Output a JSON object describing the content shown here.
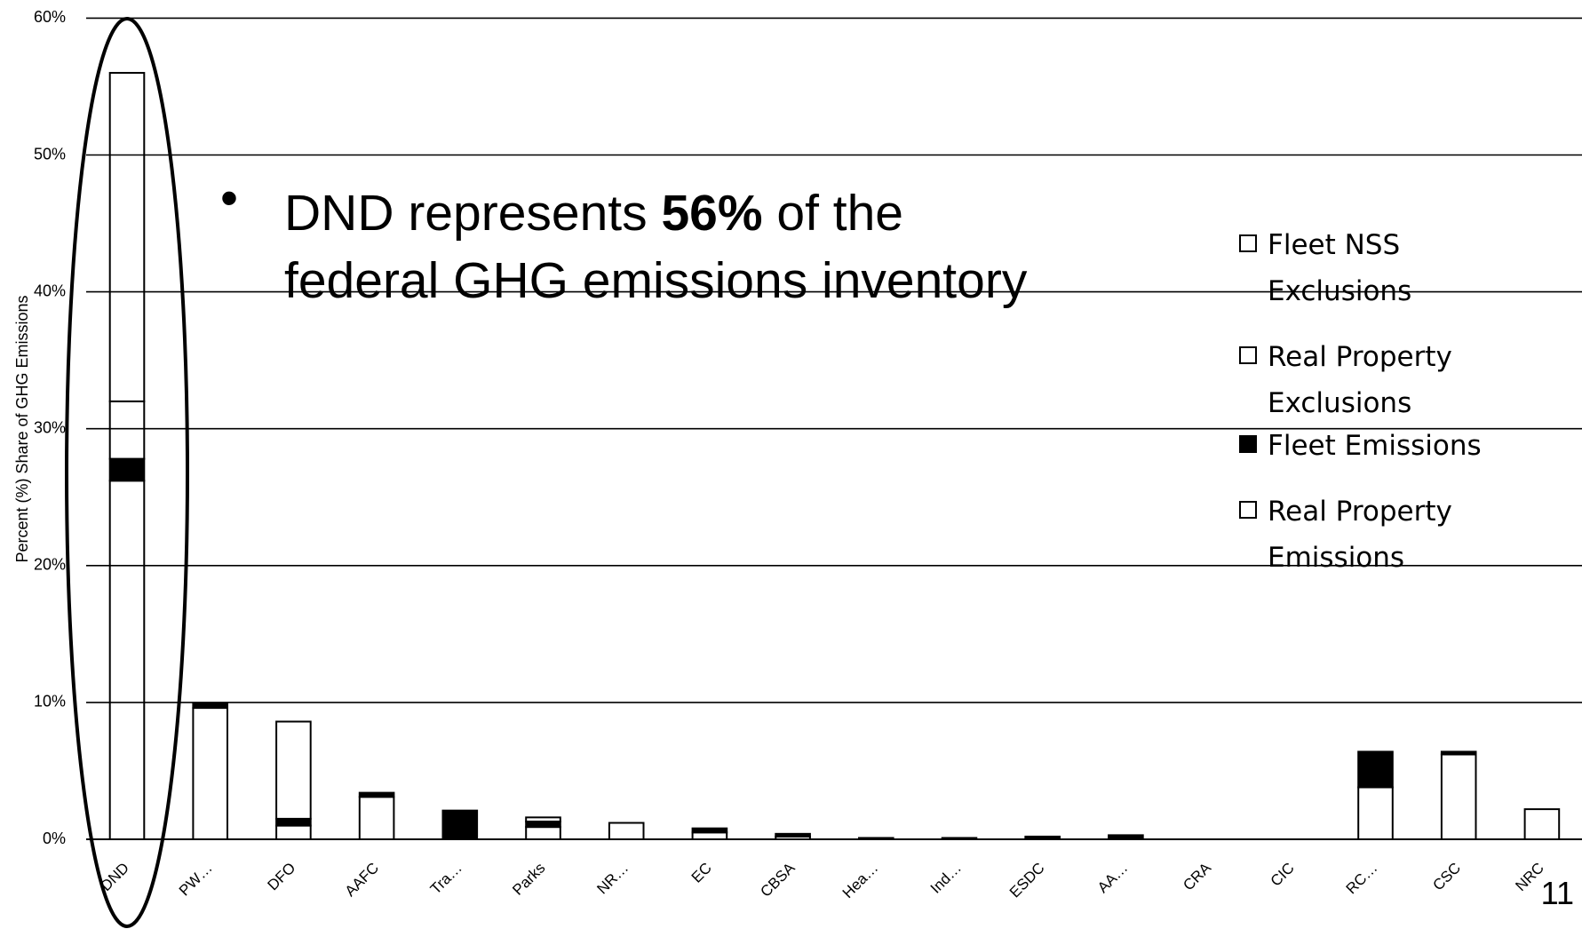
{
  "chart_data": {
    "type": "stacked_bar",
    "y_axis_label": "Percent (%) Share of GHG Emissions",
    "annotation": [
      "DND represents ",
      "56%",
      " of the",
      "federal GHG emissions inventory"
    ],
    "page_number": "11",
    "categories": [
      "DND",
      "PW…",
      "DFO",
      "AAFC",
      "Tra…",
      "Parks",
      "NR…",
      "EC",
      "CBSA",
      "Hea…",
      "Ind…",
      "ESDC",
      "AA…",
      "CRA",
      "CIC",
      "RC…",
      "CSC",
      "NRC"
    ],
    "series": [
      {
        "name": "Real Property Emissions",
        "color": "#ffffff",
        "values": [
          26.2,
          9.6,
          1.0,
          3.1,
          0,
          0.9,
          1.2,
          0.5,
          0.2,
          0.1,
          0.1,
          0.1,
          0,
          0,
          0,
          3.8,
          6.2,
          2.2
        ]
      },
      {
        "name": "Fleet Emissions",
        "color": "#000000",
        "values": [
          1.6,
          0.3,
          0.5,
          0.3,
          2.1,
          0.4,
          0,
          0.3,
          0.2,
          0,
          0,
          0.1,
          0.3,
          0,
          0,
          2.6,
          0.2,
          0
        ]
      },
      {
        "name": "Real Property Exclusions",
        "color": "#ffffff",
        "values": [
          4.2,
          0,
          7.1,
          0,
          0,
          0.3,
          0,
          0,
          0,
          0,
          0,
          0,
          0,
          0,
          0,
          0,
          0,
          0
        ]
      },
      {
        "name": "Fleet NSS Exclusions",
        "color": "#ffffff",
        "values": [
          24,
          0,
          0,
          0,
          0,
          0,
          0,
          0,
          0,
          0,
          0,
          0,
          0,
          0,
          0,
          0,
          0,
          0
        ]
      }
    ],
    "ylim": [
      0,
      60
    ],
    "yticks": [
      {
        "value": 0,
        "label": "0%"
      },
      {
        "value": 10,
        "label": "10%"
      },
      {
        "value": 20,
        "label": "20%"
      },
      {
        "value": 30,
        "label": "30%"
      },
      {
        "value": 40,
        "label": "40%"
      },
      {
        "value": 50,
        "label": "50%"
      },
      {
        "value": 60,
        "label": "60%"
      }
    ],
    "grid": true
  }
}
